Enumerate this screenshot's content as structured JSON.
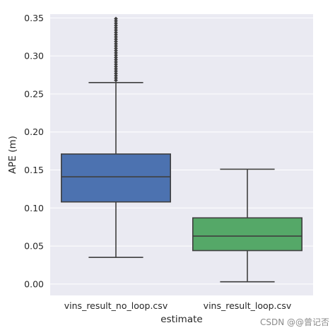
{
  "chart_data": {
    "type": "boxplot",
    "xlabel": "estimate",
    "ylabel": "APE (m)",
    "ylim": [
      -0.015,
      0.355
    ],
    "yticks": [
      "0.00",
      "0.05",
      "0.10",
      "0.15",
      "0.20",
      "0.25",
      "0.30",
      "0.35"
    ],
    "ytick_values": [
      0.0,
      0.05,
      0.1,
      0.15,
      0.2,
      0.25,
      0.3,
      0.35
    ],
    "grid": true,
    "categories": [
      "vins_result_no_loop.csv",
      "vins_result_loop.csv"
    ],
    "boxes": [
      {
        "category": "vins_result_no_loop.csv",
        "whisker_low": 0.035,
        "q1": 0.108,
        "median": 0.141,
        "q3": 0.171,
        "whisker_high": 0.265,
        "fliers": [
          0.268,
          0.271,
          0.274,
          0.277,
          0.28,
          0.283,
          0.286,
          0.289,
          0.292,
          0.295,
          0.298,
          0.301,
          0.304,
          0.307,
          0.31,
          0.313,
          0.316,
          0.319,
          0.322,
          0.325,
          0.328,
          0.331,
          0.334,
          0.337,
          0.34,
          0.343,
          0.346,
          0.349
        ],
        "color": "#4c72b0"
      },
      {
        "category": "vins_result_loop.csv",
        "whisker_low": 0.003,
        "q1": 0.044,
        "median": 0.063,
        "q3": 0.087,
        "whisker_high": 0.151,
        "fliers": [],
        "color": "#55a868"
      }
    ],
    "colors": {
      "background": "#eaeaf2",
      "grid": "#ffffff",
      "line": "#3f3f3f"
    }
  },
  "watermark": "CSDN @@曾记否"
}
